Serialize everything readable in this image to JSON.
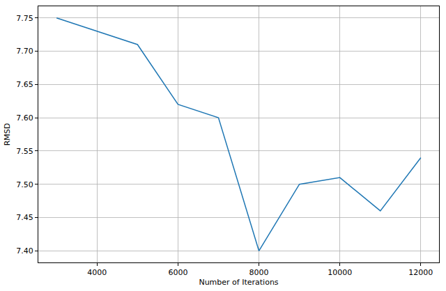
{
  "chart_data": {
    "type": "line",
    "x_label": "Number of Iterations",
    "y_label": "RMSD",
    "x": [
      3000,
      5000,
      6000,
      7000,
      8000,
      9000,
      10000,
      11000,
      12000
    ],
    "values": [
      7.75,
      7.71,
      7.62,
      7.6,
      7.4,
      7.5,
      7.51,
      7.46,
      7.54
    ],
    "color": "#1f77b4",
    "xlim": [
      2550,
      12450
    ],
    "ylim": [
      7.3825,
      7.7675
    ],
    "xticks": [
      4000,
      6000,
      8000,
      10000,
      12000
    ],
    "yticks": [
      {
        "value": 7.4,
        "label": "7.40"
      },
      {
        "value": 7.45,
        "label": "7.45"
      },
      {
        "value": 7.5,
        "label": "7.50"
      },
      {
        "value": 7.55,
        "label": "7.55"
      },
      {
        "value": 7.6,
        "label": "7.60"
      },
      {
        "value": 7.65,
        "label": "7.65"
      },
      {
        "value": 7.7,
        "label": "7.70"
      },
      {
        "value": 7.75,
        "label": "7.75"
      }
    ],
    "grid": true
  }
}
